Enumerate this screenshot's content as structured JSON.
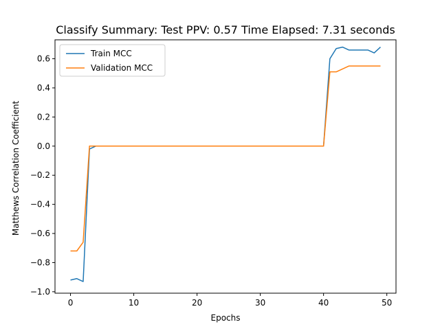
{
  "chart_data": {
    "type": "line",
    "title": "Classify Summary: Test PPV: 0.57 Time Elapsed: 7.31 seconds",
    "xlabel": "Epochs",
    "ylabel": "Matthews Correlation Coefficient",
    "xlim": [
      -2.45,
      51.45
    ],
    "ylim": [
      -1.01,
      0.73
    ],
    "xticks": [
      0,
      10,
      20,
      30,
      40,
      50
    ],
    "yticks": [
      -1.0,
      -0.8,
      -0.6,
      -0.4,
      -0.2,
      0.0,
      0.2,
      0.4,
      0.6
    ],
    "ytick_labels": [
      "−1.0",
      "−0.8",
      "−0.6",
      "−0.4",
      "−0.2",
      "0.0",
      "0.2",
      "0.4",
      "0.6"
    ],
    "grid": false,
    "legend_position": "upper-left",
    "series": [
      {
        "name": "Train MCC",
        "color": "#1f77b4",
        "x": [
          0,
          1,
          2,
          3,
          4,
          5,
          6,
          7,
          8,
          9,
          10,
          11,
          12,
          13,
          14,
          15,
          16,
          17,
          18,
          19,
          20,
          21,
          22,
          23,
          24,
          25,
          26,
          27,
          28,
          29,
          30,
          31,
          32,
          33,
          34,
          35,
          36,
          37,
          38,
          39,
          40,
          41,
          42,
          43,
          44,
          45,
          46,
          47,
          48,
          49
        ],
        "values": [
          -0.92,
          -0.91,
          -0.93,
          -0.02,
          0,
          0,
          0,
          0,
          0,
          0,
          0,
          0,
          0,
          0,
          0,
          0,
          0,
          0,
          0,
          0,
          0,
          0,
          0,
          0,
          0,
          0,
          0,
          0,
          0,
          0,
          0,
          0,
          0,
          0,
          0,
          0,
          0,
          0,
          0,
          0,
          0,
          0.6,
          0.67,
          0.68,
          0.66,
          0.66,
          0.66,
          0.66,
          0.64,
          0.68
        ]
      },
      {
        "name": "Validation MCC",
        "color": "#ff7f0e",
        "x": [
          0,
          1,
          2,
          3,
          4,
          5,
          6,
          7,
          8,
          9,
          10,
          11,
          12,
          13,
          14,
          15,
          16,
          17,
          18,
          19,
          20,
          21,
          22,
          23,
          24,
          25,
          26,
          27,
          28,
          29,
          30,
          31,
          32,
          33,
          34,
          35,
          36,
          37,
          38,
          39,
          40,
          41,
          42,
          43,
          44,
          45,
          46,
          47,
          48,
          49
        ],
        "values": [
          -0.72,
          -0.72,
          -0.66,
          0,
          0,
          0,
          0,
          0,
          0,
          0,
          0,
          0,
          0,
          0,
          0,
          0,
          0,
          0,
          0,
          0,
          0,
          0,
          0,
          0,
          0,
          0,
          0,
          0,
          0,
          0,
          0,
          0,
          0,
          0,
          0,
          0,
          0,
          0,
          0,
          0,
          0,
          0.51,
          0.51,
          0.53,
          0.55,
          0.55,
          0.55,
          0.55,
          0.55,
          0.55
        ]
      }
    ]
  }
}
